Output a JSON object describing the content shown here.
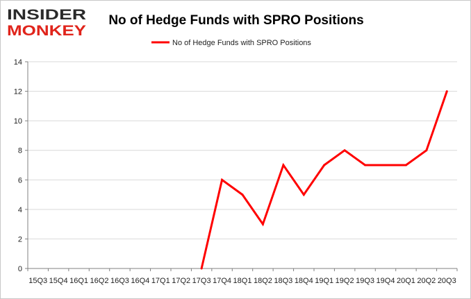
{
  "logo": {
    "line1": "INSIDER",
    "line2": "MONKEY"
  },
  "colors": {
    "series": "#ff0000",
    "grid": "#d9d9d9",
    "axis": "#808080",
    "logo_dark": "#2a2a2a",
    "logo_red": "#e0241b"
  },
  "chart_data": {
    "type": "line",
    "title": "No of Hedge Funds with SPRO Positions",
    "legend": "No of Hedge Funds with SPRO Positions",
    "legend_position": "top-center",
    "categories": [
      "15Q3",
      "15Q4",
      "16Q1",
      "16Q2",
      "16Q3",
      "16Q4",
      "17Q1",
      "17Q2",
      "17Q3",
      "17Q4",
      "18Q1",
      "18Q2",
      "18Q3",
      "18Q4",
      "19Q1",
      "19Q2",
      "19Q3",
      "19Q4",
      "20Q1",
      "20Q2",
      "20Q3"
    ],
    "series": [
      {
        "name": "No of Hedge Funds with SPRO Positions",
        "values": [
          null,
          null,
          null,
          null,
          null,
          null,
          null,
          null,
          0,
          6,
          5,
          3,
          7,
          5,
          7,
          8,
          7,
          7,
          7,
          8,
          12
        ]
      }
    ],
    "ylim": [
      0,
      14
    ],
    "yticks": [
      0,
      2,
      4,
      6,
      8,
      10,
      12,
      14
    ],
    "grid": true,
    "xlabel": "",
    "ylabel": ""
  }
}
